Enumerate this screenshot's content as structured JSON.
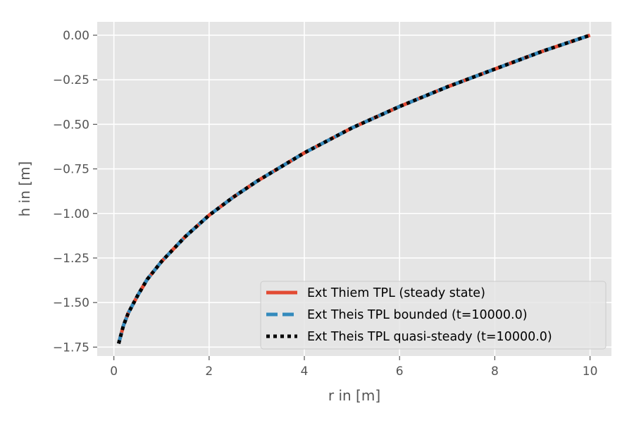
{
  "chart_data": {
    "type": "line",
    "title": "",
    "xlabel": "r in [m]",
    "ylabel": "h in [m]",
    "xlim": [
      -0.35,
      10.45
    ],
    "ylim": [
      -1.8,
      0.075
    ],
    "xticks": [
      0,
      2,
      4,
      6,
      8,
      10
    ],
    "xtick_labels": [
      "0",
      "2",
      "4",
      "6",
      "8",
      "10"
    ],
    "yticks": [
      0.0,
      -0.25,
      -0.5,
      -0.75,
      -1.0,
      -1.25,
      -1.5,
      -1.75
    ],
    "ytick_labels": [
      "0.00",
      "−0.25",
      "−0.50",
      "−0.75",
      "−1.00",
      "−1.25",
      "−1.50",
      "−1.75"
    ],
    "grid": true,
    "legend_position": "lower-right",
    "x": [
      0.1,
      0.2,
      0.3,
      0.5,
      0.7,
      1.0,
      1.5,
      2.0,
      2.5,
      3.0,
      4.0,
      5.0,
      6.0,
      7.0,
      8.0,
      9.0,
      10.0
    ],
    "series": [
      {
        "name": "Ext Thiem TPL (steady state)",
        "color": "#E24A33",
        "style": "solid",
        "values": [
          -1.73,
          -1.63,
          -1.56,
          -1.46,
          -1.37,
          -1.27,
          -1.13,
          -1.01,
          -0.91,
          -0.82,
          -0.66,
          -0.52,
          -0.4,
          -0.29,
          -0.19,
          -0.09,
          0.0
        ]
      },
      {
        "name": "Ext Theis TPL bounded (t=10000.0)",
        "color": "#348ABD",
        "style": "dashed",
        "values": [
          -1.73,
          -1.63,
          -1.56,
          -1.46,
          -1.37,
          -1.27,
          -1.13,
          -1.01,
          -0.91,
          -0.82,
          -0.66,
          -0.52,
          -0.4,
          -0.29,
          -0.19,
          -0.09,
          0.0
        ]
      },
      {
        "name": "Ext Theis TPL quasi-steady (t=10000.0)",
        "color": "#000000",
        "style": "dotted",
        "values": [
          -1.73,
          -1.63,
          -1.56,
          -1.46,
          -1.37,
          -1.27,
          -1.13,
          -1.01,
          -0.91,
          -0.82,
          -0.66,
          -0.52,
          -0.4,
          -0.29,
          -0.19,
          -0.09,
          0.0
        ]
      }
    ]
  }
}
